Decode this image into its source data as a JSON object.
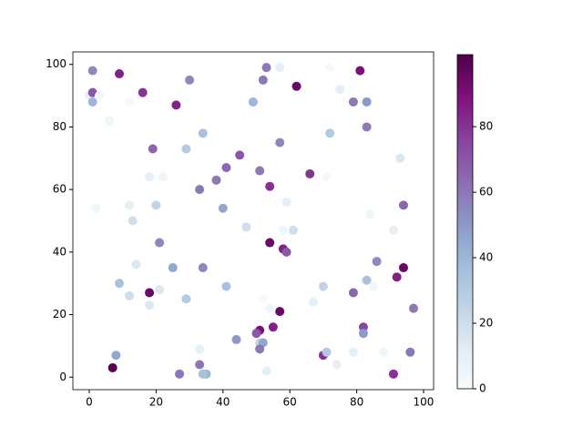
{
  "chart_data": {
    "type": "scatter",
    "series": [
      {
        "x": [
          0,
          1,
          1,
          1,
          3,
          2,
          6,
          9,
          12,
          16,
          26,
          30,
          19,
          29,
          34,
          45,
          41,
          38,
          33,
          18,
          22,
          12,
          20,
          13,
          40,
          21,
          47,
          53,
          57,
          52,
          49,
          62,
          72,
          75,
          79,
          83,
          81,
          83,
          57,
          51,
          54,
          66,
          71,
          72,
          59,
          58,
          61,
          54,
          58,
          59,
          84,
          93,
          94,
          91,
          86,
          94,
          92,
          83,
          85,
          79,
          70,
          67,
          97,
          82,
          82,
          79,
          88,
          96,
          91,
          70,
          71,
          74,
          57,
          55,
          51,
          50,
          51,
          52,
          51,
          53,
          52,
          54,
          44,
          41,
          34,
          29,
          25,
          21,
          18,
          18,
          14,
          12,
          9,
          8,
          7,
          27,
          33,
          33,
          35,
          34
        ],
        "values": [
          90,
          91,
          98,
          88,
          90,
          54,
          82,
          97,
          88,
          91,
          87,
          95,
          73,
          73,
          78,
          71,
          67,
          63,
          60,
          64,
          64,
          55,
          55,
          50,
          54,
          43,
          48,
          99,
          99,
          95,
          88,
          93,
          99,
          92,
          88,
          88,
          98,
          80,
          75,
          66,
          61,
          65,
          64,
          78,
          56,
          47,
          47,
          43,
          41,
          40,
          52,
          70,
          55,
          47,
          37,
          35,
          32,
          31,
          29,
          27,
          29,
          24,
          22,
          16,
          14,
          8,
          8,
          8,
          1,
          7,
          8,
          4,
          21,
          16,
          15,
          14,
          11,
          11,
          9,
          2,
          25,
          22,
          12,
          29,
          35,
          25,
          35,
          28,
          27,
          23,
          36,
          26,
          30,
          7,
          3,
          1,
          4,
          9,
          1,
          1
        ],
        "c": [
          10,
          70,
          55,
          40,
          5,
          5,
          5,
          85,
          2,
          80,
          85,
          55,
          65,
          30,
          35,
          70,
          65,
          60,
          60,
          10,
          5,
          10,
          25,
          20,
          45,
          55,
          20,
          60,
          10,
          60,
          40,
          95,
          2,
          10,
          60,
          50,
          90,
          60,
          55,
          60,
          80,
          80,
          2,
          30,
          10,
          5,
          20,
          95,
          85,
          70,
          5,
          15,
          65,
          10,
          55,
          95,
          85,
          35,
          5,
          65,
          25,
          10,
          60,
          75,
          50,
          10,
          5,
          60,
          80,
          80,
          30,
          10,
          95,
          85,
          90,
          70,
          25,
          45,
          60,
          10,
          2,
          5,
          50,
          35,
          55,
          30,
          45,
          15,
          95,
          15,
          15,
          20,
          35,
          45,
          100,
          60,
          60,
          10,
          40,
          35
        ]
      }
    ],
    "xlim": [
      -4.9,
      103
    ],
    "ylim": [
      -4,
      104
    ],
    "xticks": [
      0,
      20,
      40,
      60,
      80,
      100
    ],
    "yticks": [
      0,
      20,
      40,
      60,
      80,
      100
    ],
    "clim": [
      0,
      102
    ],
    "cticks": [
      0,
      20,
      40,
      60,
      80
    ],
    "cmap": [
      "#f7fcfd",
      "#e0ecf4",
      "#bfd3e6",
      "#9ebcda",
      "#8c96c6",
      "#8c6bb1",
      "#88419d",
      "#810f7c",
      "#4d004b"
    ]
  }
}
